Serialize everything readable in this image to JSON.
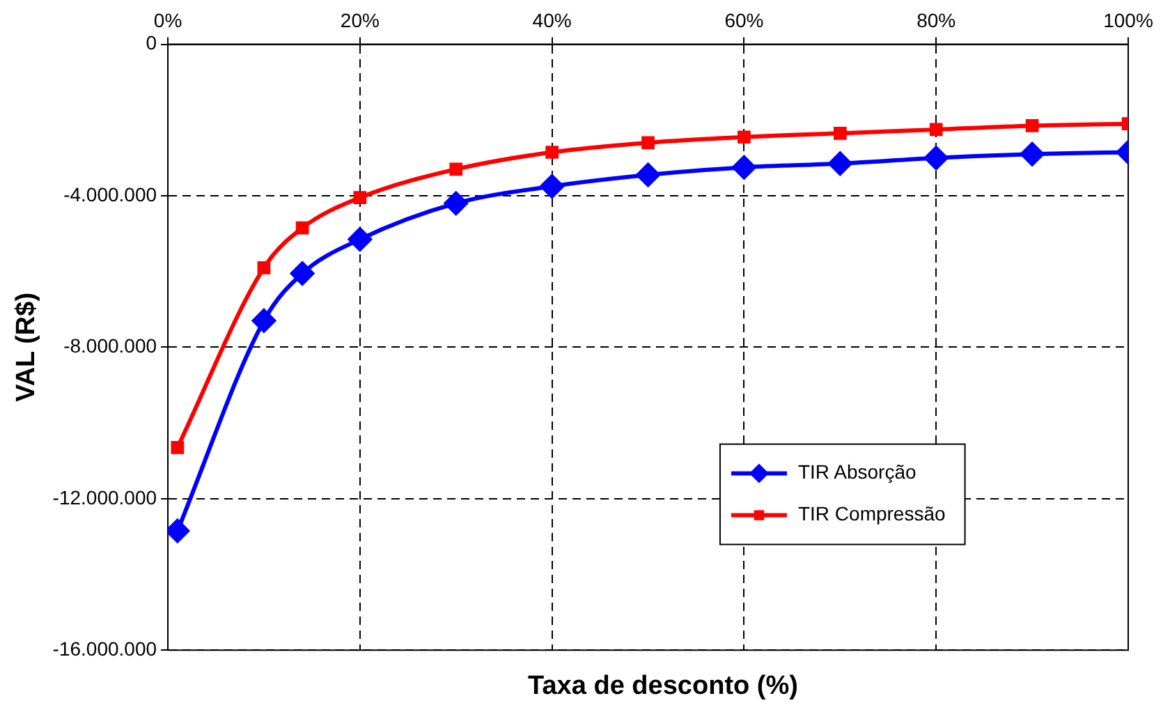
{
  "chart_data": {
    "type": "line",
    "xlabel": "Taxa de desconto (%)",
    "ylabel": "VAL (R$)",
    "xlim": [
      0,
      100
    ],
    "xticks": [
      {
        "value": 0,
        "label": "0%"
      },
      {
        "value": 20,
        "label": "20%"
      },
      {
        "value": 40,
        "label": "40%"
      },
      {
        "value": 60,
        "label": "60%"
      },
      {
        "value": 80,
        "label": "80%"
      },
      {
        "value": 100,
        "label": "100%"
      }
    ],
    "ylim": [
      -16000000,
      0
    ],
    "yticks": [
      {
        "value": -16000000,
        "label": "-16.000.000"
      },
      {
        "value": -12000000,
        "label": "-12.000.000"
      },
      {
        "value": -8000000,
        "label": "-8.000.000"
      },
      {
        "value": -4000000,
        "label": "-4.000.000"
      },
      0
    ],
    "x": [
      1,
      10,
      14,
      20,
      30,
      40,
      50,
      60,
      70,
      80,
      90,
      100
    ],
    "series": [
      {
        "name": "TIR Absorção",
        "color": "#0000ff",
        "marker": "diamond",
        "values": [
          -12850000,
          -7300000,
          -6050000,
          -5150000,
          -4200000,
          -3750000,
          -3450000,
          -3250000,
          -3150000,
          -3000000,
          -2900000,
          -2850000
        ]
      },
      {
        "name": "TIR Compressão",
        "color": "#ff0000",
        "marker": "square",
        "values": [
          -10650000,
          -5900000,
          -4850000,
          -4050000,
          -3300000,
          -2850000,
          -2600000,
          -2450000,
          -2350000,
          -2250000,
          -2150000,
          -2100000
        ]
      }
    ],
    "grid": true,
    "legend": "bottom right",
    "line_style": "solid"
  }
}
